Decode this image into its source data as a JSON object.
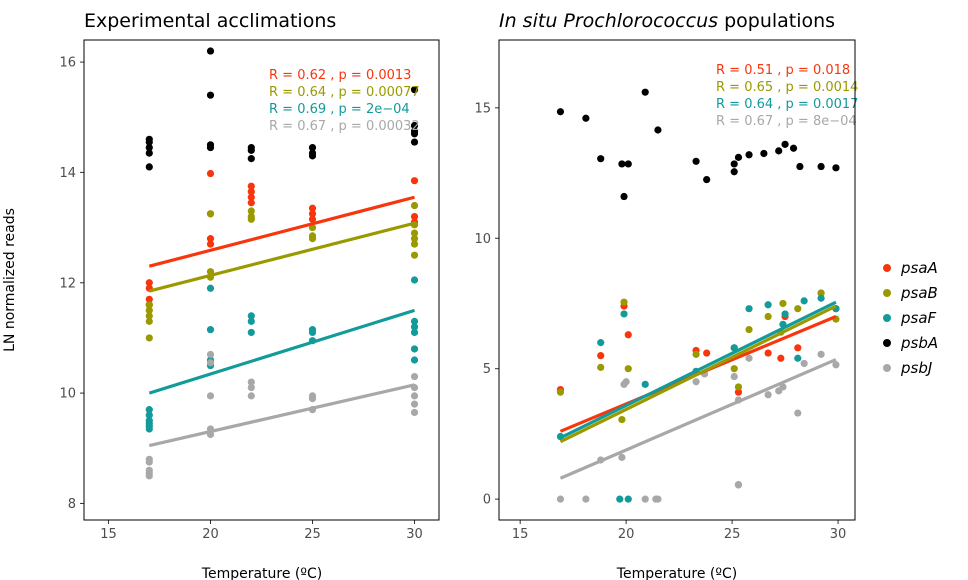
{
  "chart_data": [
    {
      "type": "scatter",
      "title": "Experimental acclimations",
      "title_italic_part": "",
      "xlabel": "Temperature (ºC)",
      "ylabel": "LN normalized reads",
      "xlim": [
        13.8,
        31.2
      ],
      "ylim": [
        7.7,
        16.4
      ],
      "xticks": [
        15,
        20,
        25,
        30
      ],
      "yticks": [
        8,
        10,
        12,
        14,
        16
      ],
      "grid": false,
      "series": [
        {
          "name": "psaA",
          "color": "#F8360E",
          "stat": "R = 0.62 , p = 0.0013",
          "fit": [
            [
              17,
              12.3
            ],
            [
              30,
              13.55
            ]
          ],
          "points": [
            [
              17,
              11.7
            ],
            [
              17,
              11.9
            ],
            [
              17,
              12.0
            ],
            [
              17,
              11.6
            ],
            [
              20,
              13.98
            ],
            [
              20,
              13.25
            ],
            [
              20,
              12.8
            ],
            [
              20,
              12.7
            ],
            [
              22,
              13.75
            ],
            [
              22,
              13.65
            ],
            [
              22,
              13.55
            ],
            [
              22,
              13.45
            ],
            [
              25,
              13.35
            ],
            [
              25,
              13.25
            ],
            [
              25,
              13.15
            ],
            [
              30,
              13.85
            ],
            [
              30,
              13.2
            ],
            [
              30,
              13.1
            ]
          ]
        },
        {
          "name": "psaB",
          "color": "#9A9A00",
          "stat": "R = 0.64 , p = 0.00077",
          "fit": [
            [
              17,
              11.85
            ],
            [
              30,
              13.08
            ]
          ],
          "points": [
            [
              17,
              11.6
            ],
            [
              17,
              11.5
            ],
            [
              17,
              11.4
            ],
            [
              17,
              11.3
            ],
            [
              17,
              11.0
            ],
            [
              20,
              13.25
            ],
            [
              20,
              12.2
            ],
            [
              20,
              12.1
            ],
            [
              22,
              13.3
            ],
            [
              22,
              13.2
            ],
            [
              22,
              13.15
            ],
            [
              25,
              13.0
            ],
            [
              25,
              12.85
            ],
            [
              25,
              12.8
            ],
            [
              30,
              13.4
            ],
            [
              30,
              13.05
            ],
            [
              30,
              12.9
            ],
            [
              30,
              12.8
            ],
            [
              30,
              12.7
            ],
            [
              30,
              12.5
            ]
          ]
        },
        {
          "name": "psaF",
          "color": "#139A9A",
          "stat": "R = 0.69 , p = 2e−04",
          "fit": [
            [
              17,
              10.0
            ],
            [
              30,
              11.5
            ]
          ],
          "points": [
            [
              17,
              9.7
            ],
            [
              17,
              9.6
            ],
            [
              17,
              9.5
            ],
            [
              17,
              9.45
            ],
            [
              17,
              9.4
            ],
            [
              17,
              9.35
            ],
            [
              20,
              11.9
            ],
            [
              20,
              11.15
            ],
            [
              20,
              10.6
            ],
            [
              20,
              10.5
            ],
            [
              22,
              11.4
            ],
            [
              22,
              11.3
            ],
            [
              22,
              11.1
            ],
            [
              25,
              11.15
            ],
            [
              25,
              11.1
            ],
            [
              25,
              10.95
            ],
            [
              30,
              12.05
            ],
            [
              30,
              11.3
            ],
            [
              30,
              11.2
            ],
            [
              30,
              11.1
            ],
            [
              30,
              10.8
            ],
            [
              30,
              10.6
            ]
          ]
        },
        {
          "name": "psbA",
          "color": "#000000",
          "stat": "",
          "fit": [],
          "points": [
            [
              17,
              14.6
            ],
            [
              17,
              14.55
            ],
            [
              17,
              14.45
            ],
            [
              17,
              14.35
            ],
            [
              17,
              14.1
            ],
            [
              20,
              16.2
            ],
            [
              20,
              15.4
            ],
            [
              20,
              14.5
            ],
            [
              20,
              14.45
            ],
            [
              22,
              14.45
            ],
            [
              22,
              14.4
            ],
            [
              22,
              14.25
            ],
            [
              25,
              14.45
            ],
            [
              25,
              14.35
            ],
            [
              25,
              14.3
            ],
            [
              30,
              15.5
            ],
            [
              30,
              14.85
            ],
            [
              30,
              14.75
            ],
            [
              30,
              14.7
            ],
            [
              30,
              14.55
            ]
          ]
        },
        {
          "name": "psbJ",
          "color": "#A8A8A8",
          "stat": "R = 0.67 , p = 0.00032",
          "fit": [
            [
              17,
              9.05
            ],
            [
              30,
              10.15
            ]
          ],
          "points": [
            [
              17,
              8.8
            ],
            [
              17,
              8.75
            ],
            [
              17,
              8.6
            ],
            [
              17,
              8.55
            ],
            [
              17,
              8.5
            ],
            [
              20,
              10.7
            ],
            [
              20,
              10.55
            ],
            [
              20,
              9.95
            ],
            [
              20,
              9.35
            ],
            [
              20,
              9.25
            ],
            [
              22,
              10.2
            ],
            [
              22,
              10.1
            ],
            [
              22,
              9.95
            ],
            [
              25,
              9.95
            ],
            [
              25,
              9.9
            ],
            [
              25,
              9.7
            ],
            [
              30,
              10.3
            ],
            [
              30,
              10.1
            ],
            [
              30,
              9.95
            ],
            [
              30,
              9.8
            ],
            [
              30,
              9.65
            ]
          ]
        }
      ]
    },
    {
      "type": "scatter",
      "title": "populations",
      "title_italic_part": "In situ Prochlorococcus",
      "xlabel": "Temperature (ºC)",
      "ylabel": "",
      "xlim": [
        14.0,
        30.8
      ],
      "ylim": [
        -0.8,
        17.6
      ],
      "xticks": [
        15,
        20,
        25,
        30
      ],
      "yticks": [
        0,
        5,
        10,
        15
      ],
      "grid": false,
      "series": [
        {
          "name": "psaA",
          "color": "#F8360E",
          "stat": "R = 0.51 , p = 0.018",
          "fit": [
            [
              16.9,
              2.6
            ],
            [
              29.9,
              7.0
            ]
          ],
          "points": [
            [
              16.9,
              4.2
            ],
            [
              18.8,
              5.5
            ],
            [
              19.9,
              7.4
            ],
            [
              20.1,
              6.3
            ],
            [
              23.3,
              5.7
            ],
            [
              23.8,
              5.6
            ],
            [
              25.1,
              5.8
            ],
            [
              25.3,
              4.1
            ],
            [
              25.3,
              0.55
            ],
            [
              26.7,
              5.6
            ],
            [
              27.3,
              5.4
            ],
            [
              27.5,
              7.0
            ],
            [
              28.1,
              5.8
            ],
            [
              29.2,
              7.9
            ],
            [
              29.9,
              7.3
            ]
          ]
        },
        {
          "name": "psaB",
          "color": "#9A9A00",
          "stat": "R = 0.65 , p = 0.0014",
          "fit": [
            [
              16.9,
              2.2
            ],
            [
              29.9,
              7.4
            ]
          ],
          "points": [
            [
              16.9,
              4.1
            ],
            [
              18.8,
              5.05
            ],
            [
              19.8,
              3.05
            ],
            [
              19.9,
              7.55
            ],
            [
              20.1,
              5.0
            ],
            [
              23.3,
              5.55
            ],
            [
              25.1,
              5.0
            ],
            [
              25.3,
              4.3
            ],
            [
              25.8,
              6.5
            ],
            [
              26.7,
              7.0
            ],
            [
              27.3,
              6.4
            ],
            [
              27.4,
              7.5
            ],
            [
              28.1,
              7.3
            ],
            [
              29.2,
              7.9
            ],
            [
              29.9,
              6.9
            ]
          ]
        },
        {
          "name": "psaF",
          "color": "#139A9A",
          "stat": "R = 0.64 , p = 0.0017",
          "fit": [
            [
              16.9,
              2.35
            ],
            [
              29.9,
              7.55
            ]
          ],
          "points": [
            [
              16.9,
              2.4
            ],
            [
              18.8,
              6.0
            ],
            [
              19.7,
              0.0
            ],
            [
              19.9,
              7.1
            ],
            [
              20.1,
              0.0
            ],
            [
              20.9,
              4.4
            ],
            [
              23.3,
              4.9
            ],
            [
              25.1,
              5.8
            ],
            [
              25.8,
              7.3
            ],
            [
              26.7,
              7.45
            ],
            [
              27.4,
              6.7
            ],
            [
              27.5,
              7.1
            ],
            [
              28.1,
              5.4
            ],
            [
              28.4,
              7.6
            ],
            [
              29.2,
              7.7
            ],
            [
              29.9,
              7.3
            ]
          ]
        },
        {
          "name": "psbA",
          "color": "#000000",
          "stat": "",
          "fit": [],
          "points": [
            [
              16.9,
              14.85
            ],
            [
              18.1,
              14.6
            ],
            [
              18.8,
              13.05
            ],
            [
              19.8,
              12.85
            ],
            [
              19.9,
              11.6
            ],
            [
              20.1,
              12.85
            ],
            [
              20.9,
              15.6
            ],
            [
              21.5,
              14.15
            ],
            [
              23.3,
              12.95
            ],
            [
              23.8,
              12.25
            ],
            [
              25.1,
              12.85
            ],
            [
              25.1,
              12.55
            ],
            [
              25.3,
              13.1
            ],
            [
              25.8,
              13.2
            ],
            [
              26.5,
              13.25
            ],
            [
              27.2,
              13.35
            ],
            [
              27.5,
              13.6
            ],
            [
              27.9,
              13.45
            ],
            [
              28.2,
              12.75
            ],
            [
              29.2,
              12.75
            ],
            [
              29.9,
              12.7
            ]
          ]
        },
        {
          "name": "psbJ",
          "color": "#A8A8A8",
          "stat": "R = 0.67 , p = 8e−04",
          "fit": [
            [
              16.9,
              0.8
            ],
            [
              29.9,
              5.35
            ]
          ],
          "points": [
            [
              16.9,
              0.0
            ],
            [
              18.1,
              0.0
            ],
            [
              18.8,
              1.5
            ],
            [
              19.8,
              1.6
            ],
            [
              19.9,
              4.4
            ],
            [
              20.0,
              4.5
            ],
            [
              20.9,
              0.0
            ],
            [
              21.4,
              0.0
            ],
            [
              21.5,
              0.0
            ],
            [
              23.3,
              4.5
            ],
            [
              23.7,
              4.8
            ],
            [
              25.1,
              4.7
            ],
            [
              25.3,
              3.8
            ],
            [
              25.3,
              0.55
            ],
            [
              25.8,
              5.4
            ],
            [
              26.7,
              4.0
            ],
            [
              27.2,
              4.15
            ],
            [
              27.4,
              4.3
            ],
            [
              28.1,
              3.3
            ],
            [
              28.4,
              5.2
            ],
            [
              29.2,
              5.55
            ],
            [
              29.9,
              5.15
            ]
          ]
        }
      ]
    }
  ],
  "legend": {
    "placement": "right",
    "items": [
      {
        "label": "psaA",
        "color": "#F8360E"
      },
      {
        "label": "psaB",
        "color": "#9A9A00"
      },
      {
        "label": "psaF",
        "color": "#139A9A"
      },
      {
        "label": "psbA",
        "color": "#000000"
      },
      {
        "label": "psbJ",
        "color": "#A8A8A8"
      }
    ]
  }
}
